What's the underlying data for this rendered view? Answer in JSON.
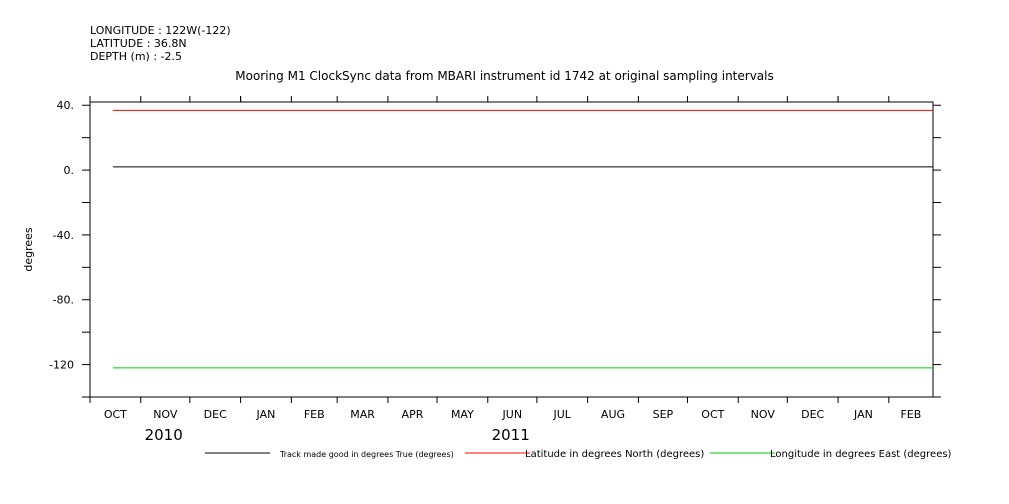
{
  "header": {
    "longitude": "LONGITUDE : 122W(-122)",
    "latitude": "LATITUDE : 36.8N",
    "depth": "DEPTH (m) : -2.5"
  },
  "chart_data": {
    "type": "line",
    "title": "Mooring M1 ClockSync data from MBARI instrument id 1742 at original sampling intervals",
    "xlabel": "",
    "ylabel": "degrees",
    "ylim": [
      -140,
      42
    ],
    "y_ticks": [
      40,
      0,
      -40,
      -80,
      -120
    ],
    "y_tick_labels": [
      "40.",
      "0.",
      "-40.",
      "-80.",
      "-120"
    ],
    "x_start": "2009-10-01",
    "x_end": "2011-02-28",
    "month_labels": [
      "OCT",
      "NOV",
      "DEC",
      "JAN",
      "FEB",
      "MAR",
      "APR",
      "MAY",
      "JUN",
      "JUL",
      "AUG",
      "SEP",
      "OCT",
      "NOV",
      "DEC",
      "JAN",
      "FEB"
    ],
    "year_labels": [
      {
        "label": "2010",
        "at": "2009-11-15"
      },
      {
        "label": "2011",
        "at": "2010-06-15"
      }
    ],
    "grid": false,
    "legend_position": "bottom",
    "series": [
      {
        "name": "Track made good in degrees True (degrees)",
        "color": "#000000",
        "x": [
          "2009-10-15",
          "2011-02-28"
        ],
        "y": [
          2,
          2
        ]
      },
      {
        "name": "Latitude in degrees North (degrees)",
        "color": "#ff0000",
        "x": [
          "2009-10-15",
          "2011-02-28"
        ],
        "y": [
          36.8,
          36.8
        ]
      },
      {
        "name": "Longitude in degrees East (degrees)",
        "color": "#00cc00",
        "x": [
          "2009-10-15",
          "2011-02-28"
        ],
        "y": [
          -122,
          -122
        ]
      }
    ]
  }
}
